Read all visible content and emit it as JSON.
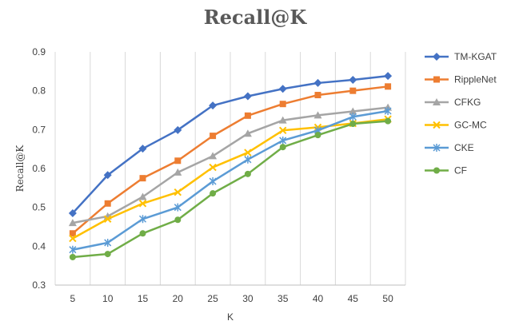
{
  "chart_data": {
    "type": "line",
    "title": "Recall@K",
    "xlabel": "K",
    "ylabel": "Recall@K",
    "x": [
      5,
      10,
      15,
      20,
      25,
      30,
      35,
      40,
      45,
      50
    ],
    "x_tick_labels": [
      "5",
      "10",
      "15",
      "20",
      "25",
      "30",
      "35",
      "40",
      "45",
      "50"
    ],
    "ylim": [
      0.3,
      0.9
    ],
    "y_ticks": [
      0.3,
      0.4,
      0.5,
      0.6,
      0.7,
      0.8,
      0.9
    ],
    "y_tick_labels": [
      "0.3",
      "0.4",
      "0.5",
      "0.6",
      "0.7",
      "0.8",
      "0.9"
    ],
    "grid": "vertical",
    "legend_position": "right",
    "series": [
      {
        "name": "TM-KGAT",
        "color": "#4472C4",
        "marker": "diamond",
        "values": [
          0.485,
          0.583,
          0.651,
          0.699,
          0.762,
          0.786,
          0.805,
          0.82,
          0.828,
          0.838
        ]
      },
      {
        "name": "RippleNet",
        "color": "#ED7D31",
        "marker": "square",
        "values": [
          0.433,
          0.51,
          0.575,
          0.62,
          0.684,
          0.736,
          0.766,
          0.789,
          0.8,
          0.811
        ]
      },
      {
        "name": "CFKG",
        "color": "#A5A5A5",
        "marker": "triangle",
        "values": [
          0.46,
          0.477,
          0.527,
          0.59,
          0.632,
          0.69,
          0.724,
          0.737,
          0.747,
          0.757
        ]
      },
      {
        "name": "GC-MC",
        "color": "#FFC000",
        "marker": "x",
        "values": [
          0.42,
          0.47,
          0.51,
          0.539,
          0.603,
          0.641,
          0.698,
          0.706,
          0.716,
          0.727
        ]
      },
      {
        "name": "CKE",
        "color": "#5B9BD5",
        "marker": "star",
        "values": [
          0.391,
          0.409,
          0.47,
          0.5,
          0.567,
          0.623,
          0.672,
          0.698,
          0.733,
          0.748
        ]
      },
      {
        "name": "CF",
        "color": "#70AD47",
        "marker": "circle",
        "values": [
          0.372,
          0.38,
          0.433,
          0.468,
          0.536,
          0.586,
          0.655,
          0.686,
          0.715,
          0.722
        ]
      }
    ]
  }
}
